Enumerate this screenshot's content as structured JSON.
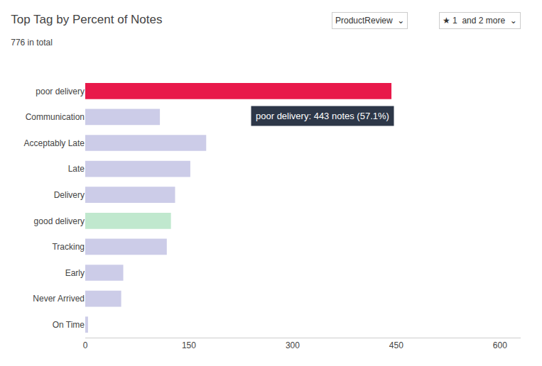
{
  "chart_data": {
    "type": "bar",
    "orientation": "horizontal",
    "title": "Top Tag by Percent of Notes",
    "subtitle": "776 in total",
    "categories": [
      "poor delivery",
      "Communication",
      "Acceptably Late",
      "Late",
      "Delivery",
      "good delivery",
      "Tracking",
      "Early",
      "Never Arrived",
      "On Time"
    ],
    "values": [
      443,
      108,
      175,
      152,
      130,
      124,
      118,
      55,
      52,
      4
    ],
    "colors": [
      "#e8194a",
      "#cccce8",
      "#cccce8",
      "#cccce8",
      "#cccce8",
      "#c0e8ce",
      "#cccce8",
      "#cccce8",
      "#cccce8",
      "#cccce8"
    ],
    "xlim": [
      0,
      630
    ],
    "xticks": [
      0,
      150,
      300,
      450,
      600
    ],
    "grid": false,
    "annotations": [
      "poor delivery: 443 notes (57.1%)",
      "ProductReview  ⌄",
      "★ 1  and 2 more  ⌄"
    ]
  }
}
